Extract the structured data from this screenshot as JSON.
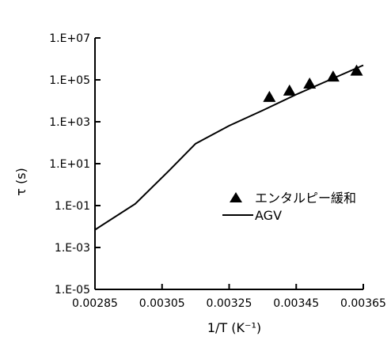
{
  "chart_data": {
    "type": "scatter",
    "xlabel": "1/T (K⁻¹)",
    "ylabel": "τ (s)",
    "x_ticks": [
      0.00285,
      0.00305,
      0.00325,
      0.00345,
      0.00365
    ],
    "x_tick_labels": [
      "0.00285",
      "0.00305",
      "0.00325",
      "0.00345",
      "0.00365"
    ],
    "y_ticks_log10": [
      -5,
      -3,
      -1,
      1,
      3,
      5,
      7
    ],
    "y_tick_labels": [
      "1.E-05",
      "1.E-03",
      "1.E-01",
      "1.E+01",
      "1.E+03",
      "1.E+05",
      "1.E+07"
    ],
    "xlim": [
      0.00285,
      0.00365
    ],
    "ylim": [
      1e-05,
      10000000
    ],
    "y_scale": "log",
    "grid": false,
    "legend_position": "center-right",
    "series": [
      {
        "name": "エンタルピー緩和",
        "marker": "triangle",
        "x": [
          0.00337,
          0.00343,
          0.00349,
          0.00356,
          0.00363
        ],
        "y": [
          15000,
          30000,
          65000,
          140000,
          270000
        ]
      },
      {
        "name": "AGV",
        "marker": "line",
        "x": [
          0.00285,
          0.00297,
          0.00307,
          0.00315,
          0.00325,
          0.00335,
          0.00345,
          0.00355,
          0.00365
        ],
        "y": [
          0.007,
          0.12,
          4.5,
          90,
          650,
          3500,
          20000,
          100000,
          500000
        ]
      }
    ]
  }
}
